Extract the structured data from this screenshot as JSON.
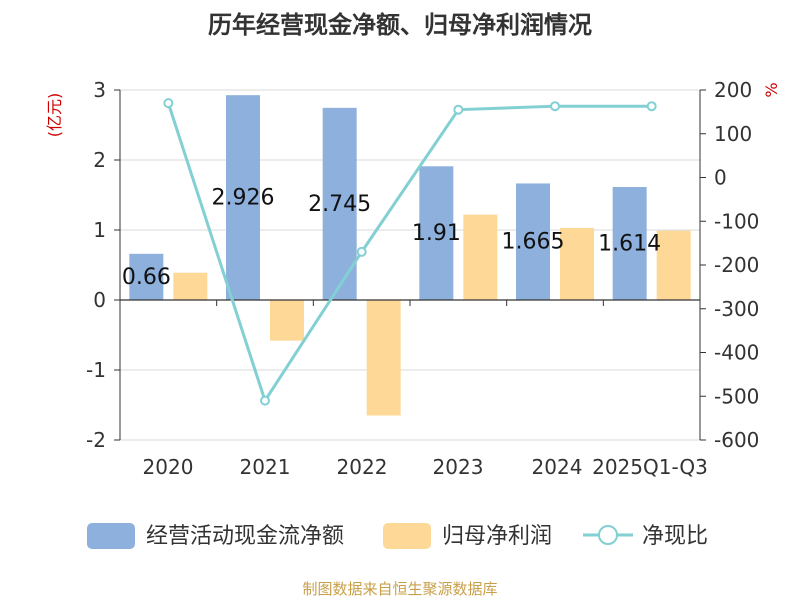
{
  "chart_data": {
    "type": "bar",
    "title": "历年经营现金净额、归母净利润情况",
    "categories": [
      "2020",
      "2021",
      "2022",
      "2023",
      "2024",
      "2025Q1-Q3"
    ],
    "y_left": {
      "label": "(亿元)",
      "ylim": [
        -2,
        3
      ],
      "ticks": [
        "3",
        "2",
        "1",
        "0",
        "-1",
        "-2"
      ]
    },
    "y_right": {
      "label": "%",
      "ylim": [
        -600,
        200
      ],
      "ticks": [
        "200",
        "100",
        "0",
        "-100",
        "-200",
        "-300",
        "-400",
        "-500",
        "-600"
      ]
    },
    "series": [
      {
        "name": "经营活动现金流净额",
        "type": "bar",
        "axis": "left",
        "color": "#8eb0dc",
        "values": [
          0.66,
          2.926,
          2.745,
          1.91,
          1.665,
          1.614
        ],
        "labels": [
          "0.66",
          "2.926",
          "2.745",
          "1.91",
          "1.665",
          "1.614"
        ]
      },
      {
        "name": "归母净利润",
        "type": "bar",
        "axis": "left",
        "color": "#fdd897",
        "values": [
          0.39,
          -0.58,
          -1.65,
          1.22,
          1.03,
          0.99
        ]
      },
      {
        "name": "净现比",
        "type": "line",
        "axis": "right",
        "color": "#82d0d3",
        "values": [
          170,
          -510,
          -170,
          155,
          163,
          163
        ]
      }
    ],
    "legend_position": "bottom",
    "grid": true
  },
  "source": "制图数据来自恒生聚源数据库",
  "colors": {
    "title": "#333333",
    "axis_label_left": "#cc0000",
    "axis_label_right": "#cc0000",
    "source": "#c8a04a",
    "grid": "#d8d8d8",
    "axis": "#333333"
  }
}
